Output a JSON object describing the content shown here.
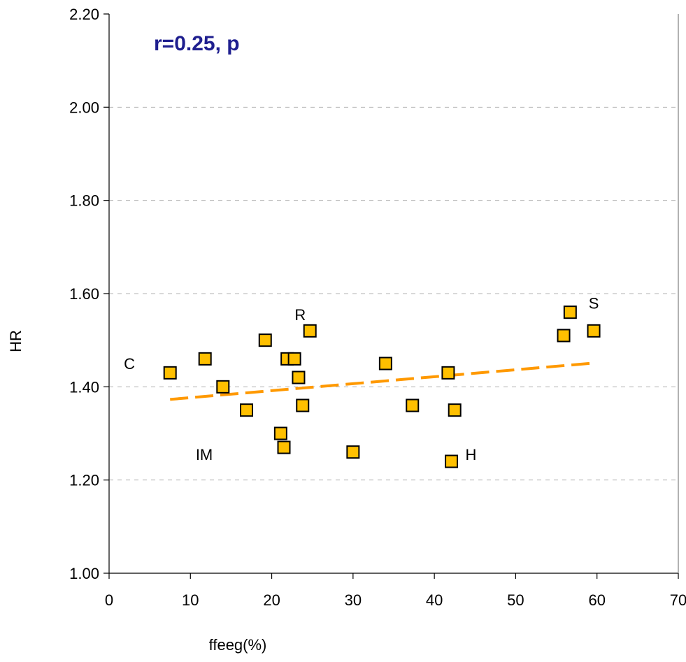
{
  "chart_data": {
    "type": "scatter",
    "title": "",
    "xlabel": "ffeeg(%)",
    "ylabel": "HR",
    "xlim": [
      0,
      70
    ],
    "ylim": [
      1.0,
      2.2
    ],
    "x_ticks": [
      0,
      10,
      20,
      30,
      40,
      50,
      60,
      70
    ],
    "x_tick_labels": [
      "0",
      "10",
      "20",
      "30",
      "40",
      "50",
      "60",
      "70"
    ],
    "y_ticks": [
      1.0,
      1.2,
      1.4,
      1.6,
      1.8,
      2.0,
      2.2
    ],
    "y_tick_labels": [
      "1.00",
      "1.20",
      "1.40",
      "1.60",
      "1.80",
      "2.00",
      "2.20"
    ],
    "grid": "horizontal dashed",
    "marker_color": "#FFC000",
    "marker_edge": "#000000",
    "trend_color": "#FF9900",
    "stat_text": "r=0.25, p",
    "series": [
      {
        "x": [
          7.5,
          11.8,
          14.0,
          16.9,
          19.2,
          21.1,
          21.5,
          21.9,
          22.8,
          23.3,
          23.8,
          24.7,
          30.0,
          34.0,
          37.3,
          41.7,
          42.1,
          42.5,
          55.9,
          56.7,
          59.6
        ],
        "y": [
          1.43,
          1.46,
          1.4,
          1.35,
          1.5,
          1.3,
          1.27,
          1.46,
          1.46,
          1.42,
          1.36,
          1.52,
          1.26,
          1.45,
          1.36,
          1.43,
          1.24,
          1.35,
          1.51,
          1.56,
          1.52
        ]
      }
    ],
    "trendline": {
      "x": [
        7.5,
        59.6
      ],
      "y": [
        1.373,
        1.451
      ],
      "style": "dashed"
    },
    "annotations": [
      {
        "text": "C",
        "x": 2.5,
        "y": 1.45
      },
      {
        "text": "IM",
        "x": 11.7,
        "y": 1.255
      },
      {
        "text": "R",
        "x": 23.5,
        "y": 1.555
      },
      {
        "text": "S",
        "x": 59.6,
        "y": 1.58
      },
      {
        "text": "H",
        "x": 44.5,
        "y": 1.255
      }
    ]
  }
}
